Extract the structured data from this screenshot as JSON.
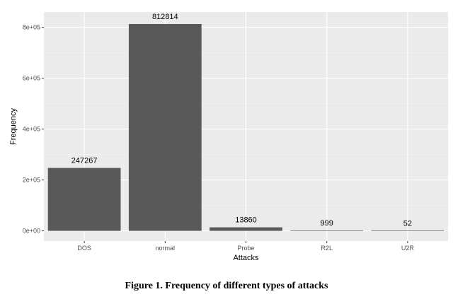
{
  "caption": "Figure 1. Frequency of different types of attacks",
  "colors": {
    "panel_background": "#ebebeb",
    "grid_major": "#ffffff",
    "bar_fill": "#595959"
  },
  "chart_data": {
    "type": "bar",
    "categories": [
      "DOS",
      "normal",
      "Probe",
      "R2L",
      "U2R"
    ],
    "values": [
      247267,
      812814,
      13860,
      999,
      52
    ],
    "data_labels": [
      "247267",
      "812814",
      "13860",
      "999",
      "52"
    ],
    "xlabel": "Attacks",
    "ylabel": "Frequency",
    "ylim": [
      -40000,
      860000
    ],
    "yticks": [
      0,
      200000,
      400000,
      600000,
      800000
    ],
    "ytick_labels": [
      "0e+00",
      "2e+05",
      "4e+05",
      "6e+05",
      "8e+05"
    ],
    "grid": true,
    "legend": "none"
  }
}
